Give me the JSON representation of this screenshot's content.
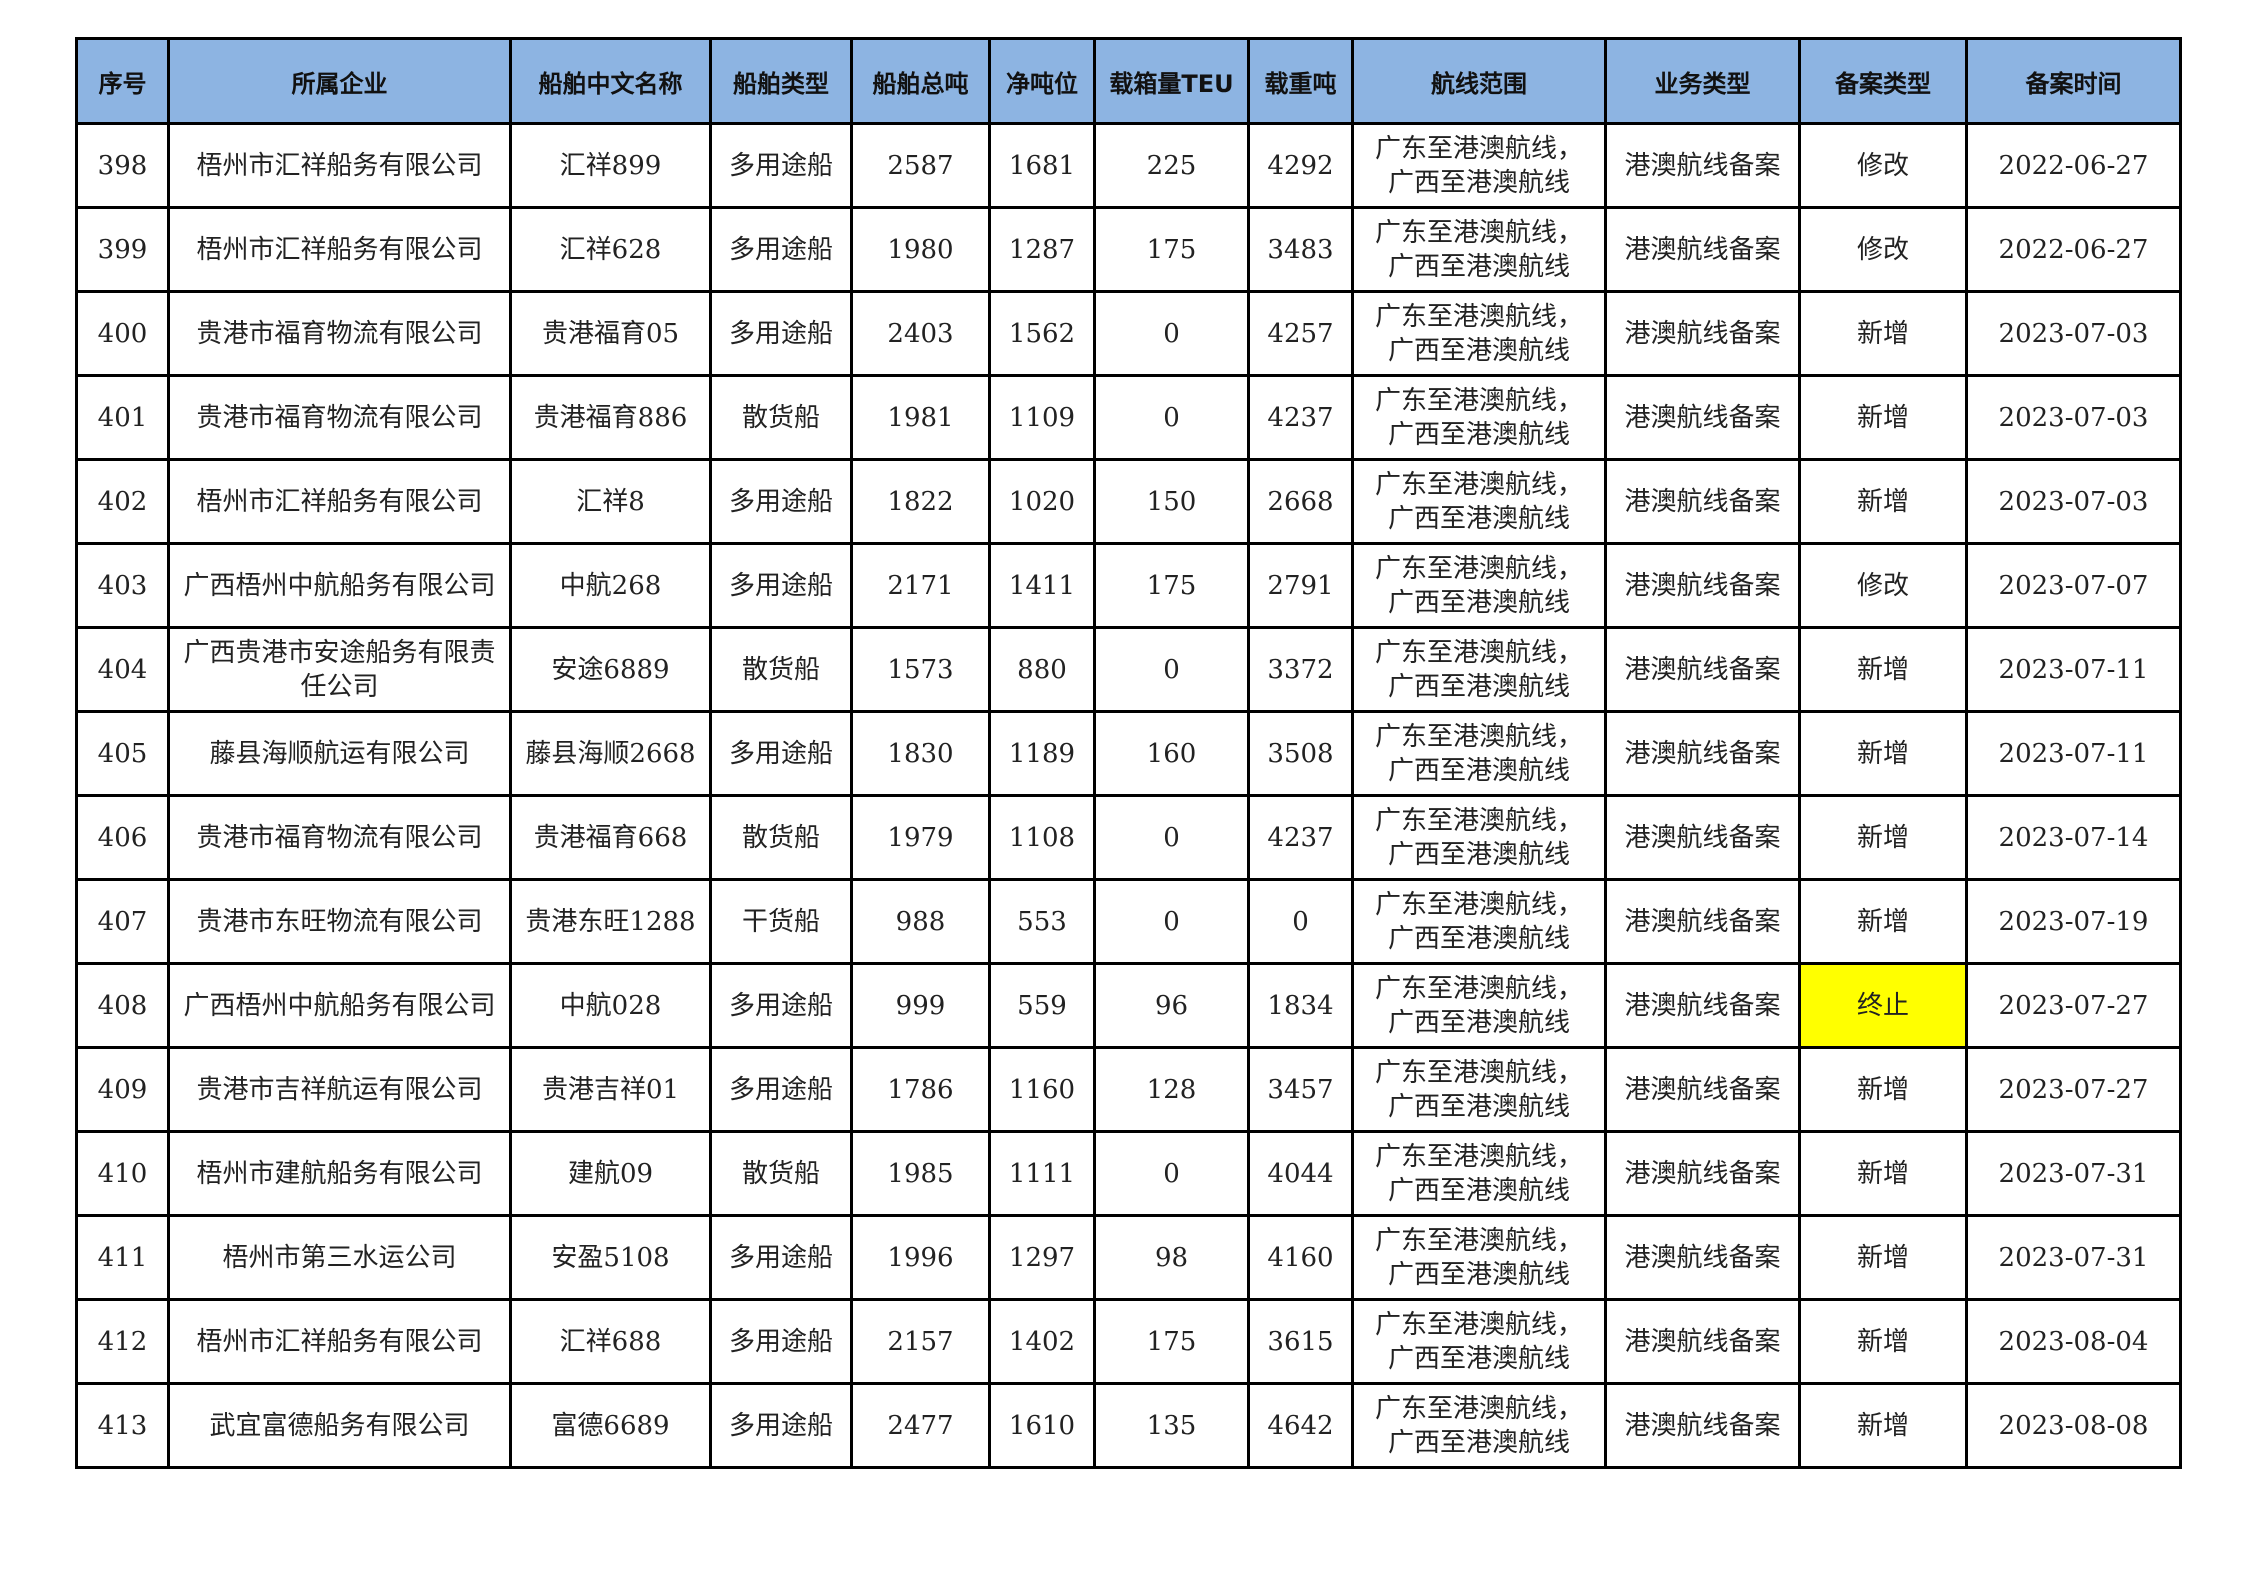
{
  "table": {
    "headers": [
      "序号",
      "所属企业",
      "船舶中文名称",
      "船舶类型",
      "船舶总吨",
      "净吨位",
      "载箱量TEU",
      "载重吨",
      "航线范围",
      "业务类型",
      "备案类型",
      "备案时间"
    ],
    "highlight_color": "#ffff00",
    "header_color": "#8db4e2",
    "rows": [
      [
        "398",
        "梧州市汇祥船务有限公司",
        "汇祥899",
        "多用途船",
        "2587",
        "1681",
        "225",
        "4292",
        "广东至港澳航线，广西至港澳航线",
        "港澳航线备案",
        "修改",
        "2022-06-27"
      ],
      [
        "399",
        "梧州市汇祥船务有限公司",
        "汇祥628",
        "多用途船",
        "1980",
        "1287",
        "175",
        "3483",
        "广东至港澳航线，广西至港澳航线",
        "港澳航线备案",
        "修改",
        "2022-06-27"
      ],
      [
        "400",
        "贵港市福育物流有限公司",
        "贵港福育05",
        "多用途船",
        "2403",
        "1562",
        "0",
        "4257",
        "广东至港澳航线，广西至港澳航线",
        "港澳航线备案",
        "新增",
        "2023-07-03"
      ],
      [
        "401",
        "贵港市福育物流有限公司",
        "贵港福育886",
        "散货船",
        "1981",
        "1109",
        "0",
        "4237",
        "广东至港澳航线，广西至港澳航线",
        "港澳航线备案",
        "新增",
        "2023-07-03"
      ],
      [
        "402",
        "梧州市汇祥船务有限公司",
        "汇祥8",
        "多用途船",
        "1822",
        "1020",
        "150",
        "2668",
        "广东至港澳航线，广西至港澳航线",
        "港澳航线备案",
        "新增",
        "2023-07-03"
      ],
      [
        "403",
        "广西梧州中航船务有限公司",
        "中航268",
        "多用途船",
        "2171",
        "1411",
        "175",
        "2791",
        "广东至港澳航线，广西至港澳航线",
        "港澳航线备案",
        "修改",
        "2023-07-07"
      ],
      [
        "404",
        "广西贵港市安途船务有限责任公司",
        "安途6889",
        "散货船",
        "1573",
        "880",
        "0",
        "3372",
        "广东至港澳航线，广西至港澳航线",
        "港澳航线备案",
        "新增",
        "2023-07-11"
      ],
      [
        "405",
        "藤县海顺航运有限公司",
        "藤县海顺2668",
        "多用途船",
        "1830",
        "1189",
        "160",
        "3508",
        "广东至港澳航线，广西至港澳航线",
        "港澳航线备案",
        "新增",
        "2023-07-11"
      ],
      [
        "406",
        "贵港市福育物流有限公司",
        "贵港福育668",
        "散货船",
        "1979",
        "1108",
        "0",
        "4237",
        "广东至港澳航线，广西至港澳航线",
        "港澳航线备案",
        "新增",
        "2023-07-14"
      ],
      [
        "407",
        "贵港市东旺物流有限公司",
        "贵港东旺1288",
        "干货船",
        "988",
        "553",
        "0",
        "0",
        "广东至港澳航线，广西至港澳航线",
        "港澳航线备案",
        "新增",
        "2023-07-19"
      ],
      [
        "408",
        "广西梧州中航船务有限公司",
        "中航028",
        "多用途船",
        "999",
        "559",
        "96",
        "1834",
        "广东至港澳航线，广西至港澳航线",
        "港澳航线备案",
        "终止",
        "2023-07-27"
      ],
      [
        "409",
        "贵港市吉祥航运有限公司",
        "贵港吉祥01",
        "多用途船",
        "1786",
        "1160",
        "128",
        "3457",
        "广东至港澳航线，广西至港澳航线",
        "港澳航线备案",
        "新增",
        "2023-07-27"
      ],
      [
        "410",
        "梧州市建航船务有限公司",
        "建航09",
        "散货船",
        "1985",
        "1111",
        "0",
        "4044",
        "广东至港澳航线，广西至港澳航线",
        "港澳航线备案",
        "新增",
        "2023-07-31"
      ],
      [
        "411",
        "梧州市第三水运公司",
        "安盈5108",
        "多用途船",
        "1996",
        "1297",
        "98",
        "4160",
        "广东至港澳航线，广西至港澳航线",
        "港澳航线备案",
        "新增",
        "2023-07-31"
      ],
      [
        "412",
        "梧州市汇祥船务有限公司",
        "汇祥688",
        "多用途船",
        "2157",
        "1402",
        "175",
        "3615",
        "广东至港澳航线，广西至港澳航线",
        "港澳航线备案",
        "新增",
        "2023-08-04"
      ],
      [
        "413",
        "武宜富德船务有限公司",
        "富德6689",
        "多用途船",
        "2477",
        "1610",
        "135",
        "4642",
        "广东至港澳航线，广西至港澳航线",
        "港澳航线备案",
        "新增",
        "2023-08-08"
      ]
    ],
    "highlighted_cells": [
      {
        "row": 10,
        "col": 10
      }
    ]
  }
}
